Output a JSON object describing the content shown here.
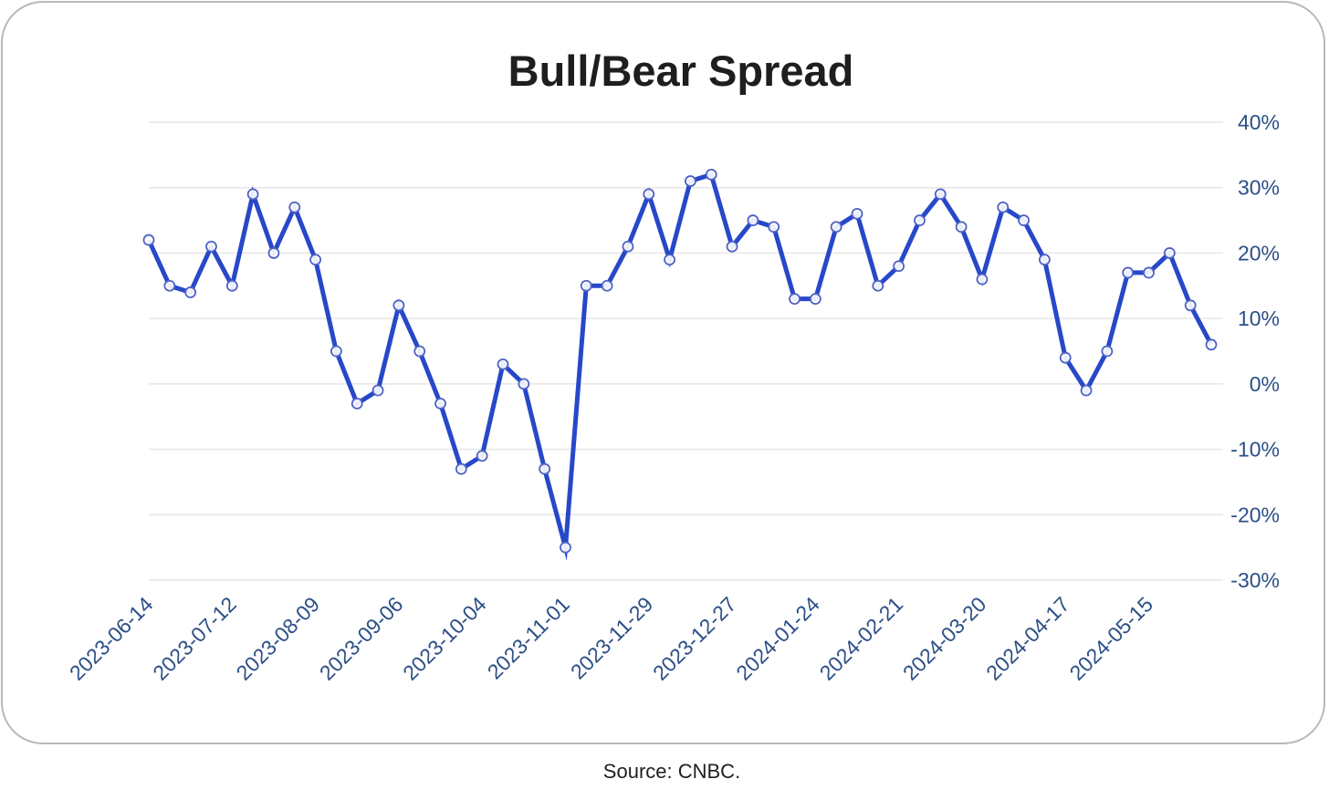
{
  "chart_data": {
    "type": "line",
    "title": "Bull/Bear Spread",
    "xlabel": "",
    "ylabel": "",
    "ylim": [
      -30,
      40
    ],
    "yticks": [
      40,
      30,
      20,
      10,
      0,
      -10,
      -20,
      -30
    ],
    "ytick_labels": [
      "40%",
      "30%",
      "20%",
      "10%",
      "0%",
      "-10%",
      "-20%",
      "-30%"
    ],
    "xtick_labels": [
      "2023-06-14",
      "2023-07-12",
      "2023-08-09",
      "2023-09-06",
      "2023-10-04",
      "2023-11-01",
      "2023-11-29",
      "2023-12-27",
      "2024-01-24",
      "2024-02-21",
      "2024-03-20",
      "2024-04-17",
      "2024-05-15"
    ],
    "grid": true,
    "legend": "none",
    "line_color": "#2748c9",
    "x": [
      "2023-06-14",
      "2023-06-21",
      "2023-06-28",
      "2023-07-05",
      "2023-07-12",
      "2023-07-19",
      "2023-07-26",
      "2023-08-02",
      "2023-08-09",
      "2023-08-16",
      "2023-08-23",
      "2023-08-30",
      "2023-09-06",
      "2023-09-13",
      "2023-09-20",
      "2023-09-27",
      "2023-10-04",
      "2023-10-11",
      "2023-10-18",
      "2023-10-25",
      "2023-11-01",
      "2023-11-08",
      "2023-11-15",
      "2023-11-22",
      "2023-11-29",
      "2023-12-06",
      "2023-12-13",
      "2023-12-20",
      "2023-12-27",
      "2024-01-03",
      "2024-01-10",
      "2024-01-17",
      "2024-01-24",
      "2024-01-31",
      "2024-02-07",
      "2024-02-14",
      "2024-02-21",
      "2024-02-28",
      "2024-03-06",
      "2024-03-13",
      "2024-03-20",
      "2024-03-27",
      "2024-04-03",
      "2024-04-10",
      "2024-04-17",
      "2024-04-24",
      "2024-05-01",
      "2024-05-08",
      "2024-05-15",
      "2024-05-22",
      "2024-05-29",
      "2024-06-05"
    ],
    "series": [
      {
        "values": [
          22,
          15,
          14,
          21,
          15,
          29,
          20,
          27,
          19,
          5,
          -3,
          -1,
          12,
          5,
          -3,
          -13,
          -11,
          3,
          0,
          -13,
          -25,
          15,
          15,
          21,
          29,
          19,
          31,
          32,
          21,
          25,
          24,
          13,
          13,
          24,
          26,
          15,
          18,
          25,
          29,
          24,
          16,
          27,
          25,
          19,
          4,
          -1,
          5,
          17,
          17,
          20,
          12,
          6
        ]
      }
    ]
  },
  "source": "Source: CNBC."
}
